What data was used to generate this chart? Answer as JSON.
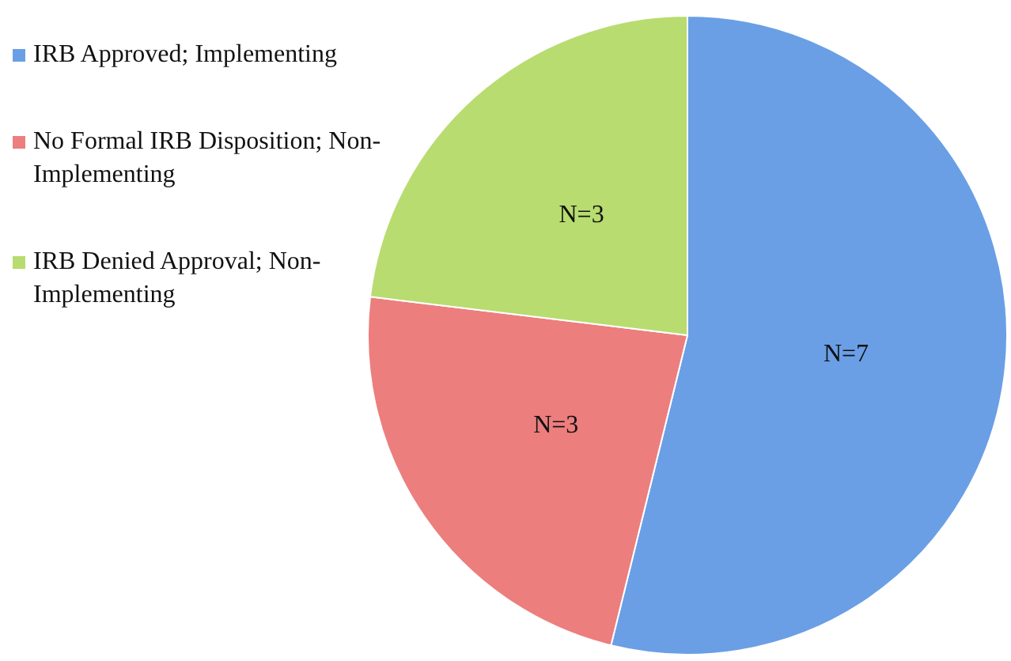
{
  "chart_data": {
    "type": "pie",
    "categories": [
      "IRB Approved; Implementing",
      "No Formal IRB Disposition; Non-Implementing",
      "IRB Denied Approval; Non-Implementing"
    ],
    "values": [
      7,
      3,
      3
    ],
    "colors": [
      "#6a9fe6",
      "#ec7e7e",
      "#b8dc70"
    ],
    "value_labels": [
      "N=7",
      "N=3",
      "N=3"
    ],
    "legend": "left"
  }
}
